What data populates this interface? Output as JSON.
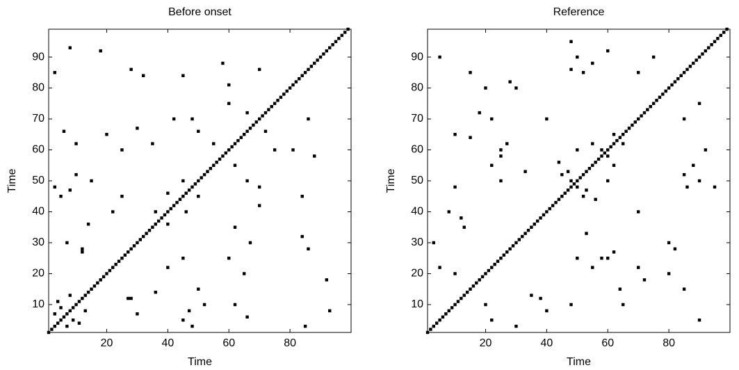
{
  "chart_data": [
    {
      "type": "scatter",
      "title": "Before onset",
      "xlabel": "Time",
      "ylabel": "Time",
      "color": "#000000",
      "xlim": [
        1,
        100
      ],
      "ylim": [
        1,
        99
      ],
      "xticks": [
        20,
        40,
        60,
        80
      ],
      "yticks": [
        10,
        20,
        30,
        40,
        50,
        60,
        70,
        80,
        90
      ],
      "x": [
        1,
        2,
        3,
        4,
        5,
        6,
        7,
        8,
        9,
        10,
        11,
        12,
        13,
        14,
        15,
        16,
        17,
        18,
        19,
        20,
        21,
        22,
        23,
        24,
        25,
        26,
        27,
        28,
        29,
        30,
        31,
        32,
        33,
        34,
        35,
        36,
        37,
        38,
        39,
        40,
        41,
        42,
        43,
        44,
        45,
        46,
        47,
        48,
        49,
        50,
        51,
        52,
        53,
        54,
        55,
        56,
        57,
        58,
        59,
        60,
        61,
        62,
        63,
        64,
        65,
        66,
        67,
        68,
        69,
        70,
        71,
        72,
        73,
        74,
        75,
        76,
        77,
        78,
        79,
        80,
        81,
        82,
        83,
        84,
        85,
        86,
        87,
        88,
        89,
        90,
        91,
        92,
        93,
        94,
        95,
        96,
        97,
        98,
        99,
        3,
        5,
        4,
        8,
        12,
        5,
        8,
        10,
        6,
        3,
        7,
        12,
        15,
        3,
        10,
        20,
        25,
        30,
        35,
        36,
        45,
        40,
        42,
        50,
        55,
        28,
        32,
        18,
        45,
        60,
        70,
        22,
        48,
        58,
        8,
        14,
        25,
        60,
        66,
        7,
        9,
        11,
        13,
        27,
        45,
        47,
        62,
        66,
        85,
        30,
        28,
        50,
        48,
        52,
        65,
        60,
        67,
        62,
        40,
        50,
        46,
        70,
        66,
        62,
        86,
        84,
        92,
        84,
        81,
        86,
        40,
        70,
        88,
        93,
        36,
        45,
        75,
        72
      ],
      "y": [
        1,
        2,
        3,
        4,
        5,
        6,
        7,
        8,
        9,
        10,
        11,
        12,
        13,
        14,
        15,
        16,
        17,
        18,
        19,
        20,
        21,
        22,
        23,
        24,
        25,
        26,
        27,
        28,
        29,
        30,
        31,
        32,
        33,
        34,
        35,
        36,
        37,
        38,
        39,
        40,
        41,
        42,
        43,
        44,
        45,
        46,
        47,
        48,
        49,
        50,
        51,
        52,
        53,
        54,
        55,
        56,
        57,
        58,
        59,
        60,
        61,
        62,
        63,
        64,
        65,
        66,
        67,
        68,
        69,
        70,
        71,
        72,
        73,
        74,
        75,
        76,
        77,
        78,
        79,
        80,
        81,
        82,
        83,
        84,
        85,
        86,
        87,
        88,
        89,
        90,
        91,
        92,
        93,
        94,
        95,
        96,
        97,
        98,
        99,
        7,
        9,
        11,
        13,
        27,
        45,
        47,
        62,
        66,
        85,
        30,
        28,
        50,
        48,
        52,
        65,
        60,
        67,
        62,
        40,
        50,
        46,
        70,
        66,
        62,
        86,
        84,
        92,
        84,
        81,
        86,
        40,
        70,
        88,
        93,
        36,
        45,
        75,
        72,
        3,
        5,
        4,
        8,
        12,
        5,
        8,
        10,
        6,
        3,
        7,
        12,
        15,
        3,
        10,
        20,
        25,
        30,
        35,
        36,
        45,
        40,
        42,
        50,
        55,
        28,
        32,
        18,
        45,
        60,
        70,
        22,
        48,
        58,
        8,
        14,
        25,
        60,
        66
      ]
    },
    {
      "type": "scatter",
      "title": "Reference",
      "xlabel": "Time",
      "ylabel": "Time",
      "color": "#000000",
      "xlim": [
        1,
        100
      ],
      "ylim": [
        1,
        99
      ],
      "xticks": [
        20,
        40,
        60,
        80
      ],
      "yticks": [
        10,
        20,
        30,
        40,
        50,
        60,
        70,
        80,
        90
      ],
      "x": [
        1,
        2,
        3,
        4,
        5,
        6,
        7,
        8,
        9,
        10,
        11,
        12,
        13,
        14,
        15,
        16,
        17,
        18,
        19,
        20,
        21,
        22,
        23,
        24,
        25,
        26,
        27,
        28,
        29,
        30,
        31,
        32,
        33,
        34,
        35,
        36,
        37,
        38,
        39,
        40,
        41,
        42,
        43,
        44,
        45,
        46,
        47,
        48,
        49,
        50,
        51,
        52,
        53,
        54,
        55,
        56,
        57,
        58,
        59,
        60,
        61,
        62,
        63,
        64,
        65,
        66,
        67,
        68,
        69,
        70,
        71,
        72,
        73,
        74,
        75,
        76,
        77,
        78,
        79,
        80,
        81,
        82,
        83,
        84,
        85,
        86,
        87,
        88,
        89,
        90,
        91,
        92,
        93,
        94,
        95,
        96,
        97,
        98,
        99,
        5,
        10,
        3,
        8,
        25,
        27,
        22,
        10,
        45,
        48,
        50,
        55,
        58,
        62,
        50,
        55,
        60,
        48,
        25,
        30,
        15,
        10,
        5,
        40,
        33,
        18,
        44,
        47,
        70,
        75,
        52,
        48,
        20,
        28,
        15,
        22,
        13,
        12,
        25,
        22,
        20,
        30,
        40,
        50,
        62,
        55,
        48,
        52,
        50,
        60,
        62,
        60,
        65,
        90,
        88,
        92,
        95,
        58,
        80,
        85,
        65,
        90,
        70,
        53,
        72,
        56,
        53,
        85,
        90,
        85,
        86,
        80,
        82,
        64,
        70,
        35,
        38,
        60
      ],
      "y": [
        1,
        2,
        3,
        4,
        5,
        6,
        7,
        8,
        9,
        10,
        11,
        12,
        13,
        14,
        15,
        16,
        17,
        18,
        19,
        20,
        21,
        22,
        23,
        24,
        25,
        26,
        27,
        28,
        29,
        30,
        31,
        32,
        33,
        34,
        35,
        36,
        37,
        38,
        39,
        40,
        41,
        42,
        43,
        44,
        45,
        46,
        47,
        48,
        49,
        50,
        51,
        52,
        53,
        54,
        55,
        56,
        57,
        58,
        59,
        60,
        61,
        62,
        63,
        64,
        65,
        66,
        67,
        68,
        69,
        70,
        71,
        72,
        73,
        74,
        75,
        76,
        77,
        78,
        79,
        80,
        81,
        82,
        83,
        84,
        85,
        86,
        87,
        88,
        89,
        90,
        91,
        92,
        93,
        94,
        95,
        96,
        97,
        98,
        99,
        22,
        20,
        30,
        40,
        50,
        62,
        55,
        48,
        52,
        50,
        60,
        62,
        60,
        65,
        90,
        88,
        92,
        95,
        58,
        80,
        85,
        65,
        90,
        70,
        53,
        72,
        56,
        53,
        85,
        90,
        85,
        86,
        80,
        82,
        64,
        70,
        35,
        38,
        60,
        5,
        10,
        3,
        8,
        25,
        27,
        22,
        10,
        45,
        48,
        50,
        55,
        58,
        62,
        50,
        55,
        60,
        48,
        25,
        30,
        15,
        10,
        5,
        40,
        33,
        18,
        44,
        47,
        70,
        75,
        52,
        48,
        20,
        28,
        15,
        22,
        13,
        12,
        25
      ]
    }
  ]
}
